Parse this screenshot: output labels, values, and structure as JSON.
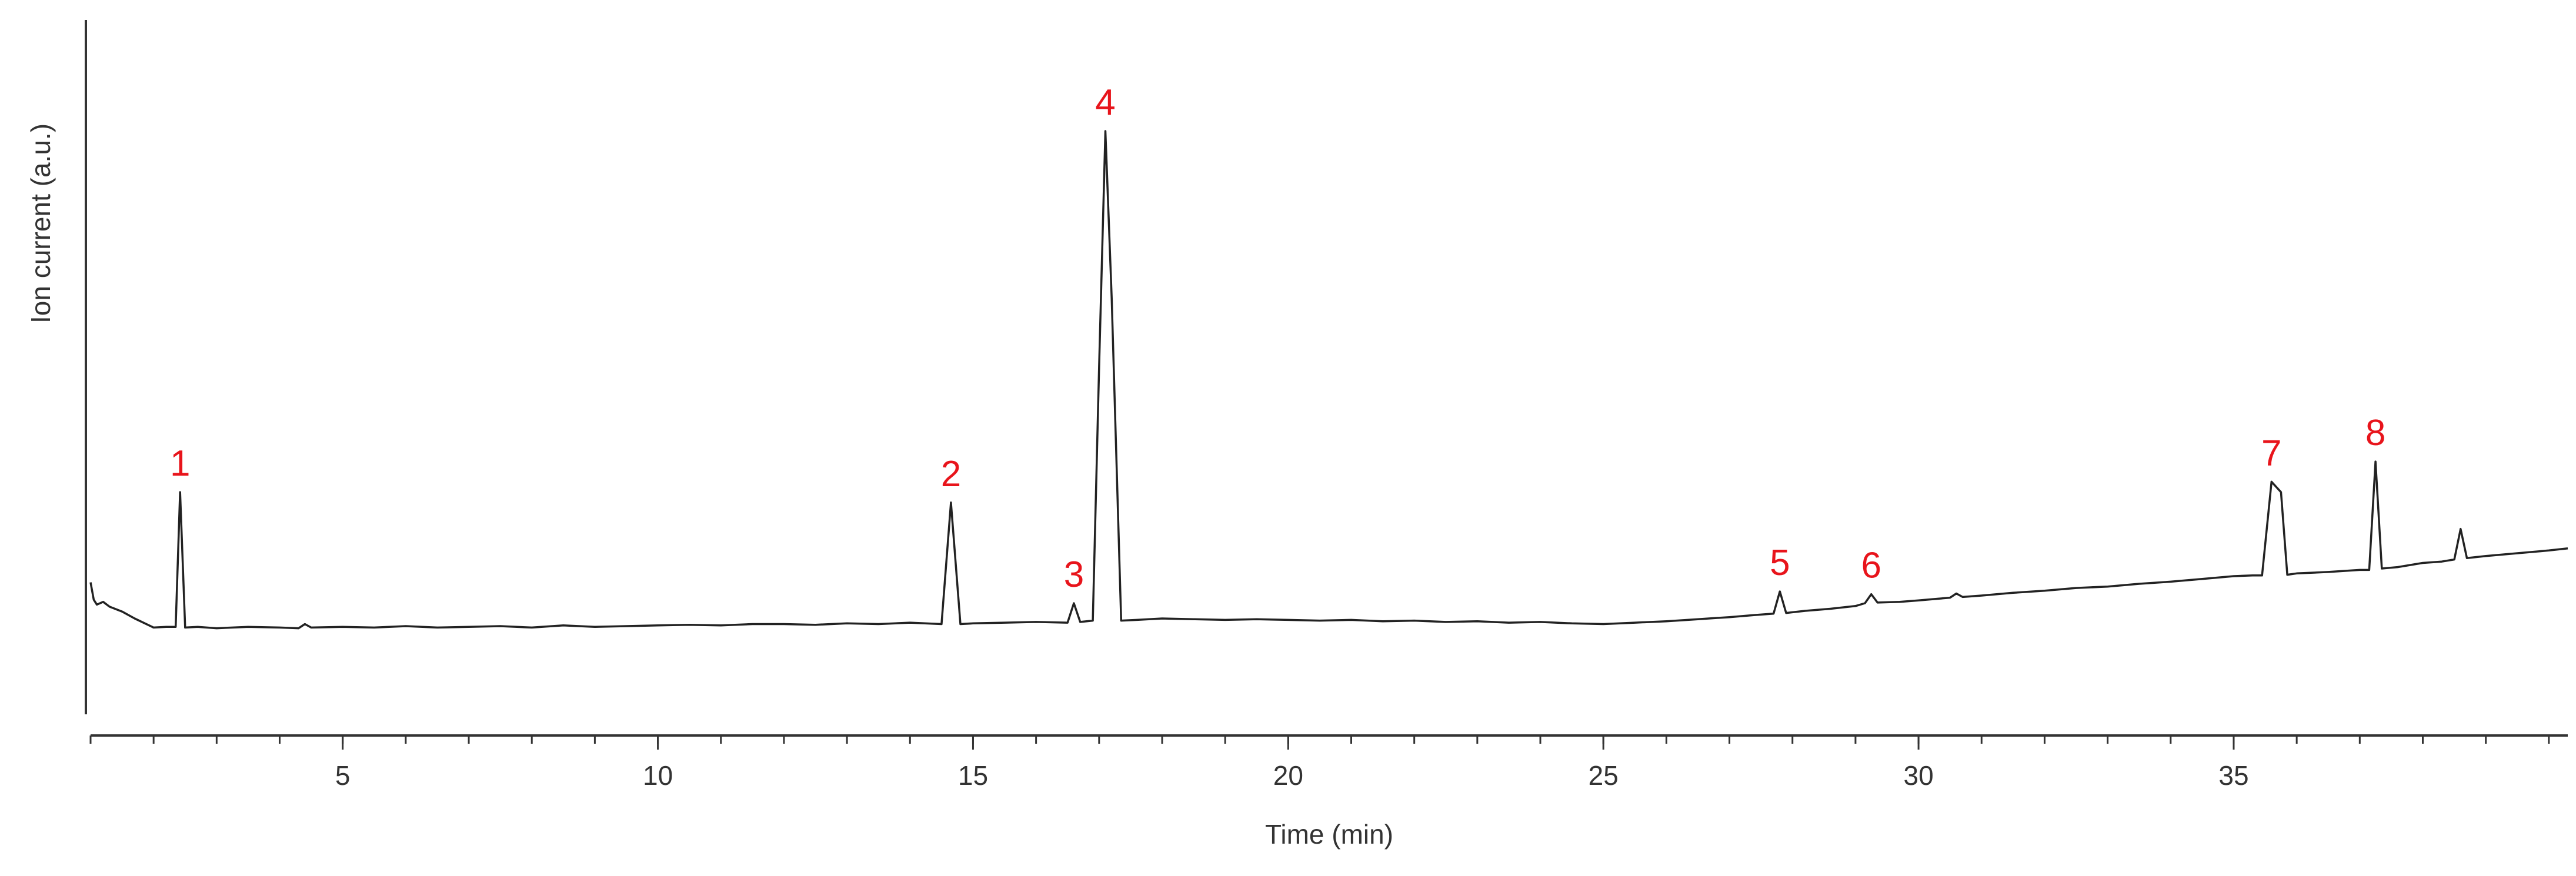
{
  "chart_data": {
    "type": "line",
    "xlabel": "Time (min)",
    "ylabel": "Ion current (a.u.)",
    "xlim": [
      1,
      40.3
    ],
    "ylim": [
      0,
      100
    ],
    "xticks": [
      5,
      10,
      15,
      20,
      25,
      30,
      35
    ],
    "xminorticks": [
      1,
      2,
      3,
      4,
      5,
      6,
      7,
      8,
      9,
      10,
      11,
      12,
      13,
      14,
      15,
      16,
      17,
      18,
      19,
      20,
      21,
      22,
      23,
      24,
      25,
      26,
      27,
      28,
      29,
      30,
      31,
      32,
      33,
      34,
      35,
      36,
      37,
      38,
      39,
      40
    ],
    "yticks": [],
    "color": "#222222",
    "annotation_color": "#e8141b",
    "x": [
      1.0,
      1.05,
      1.1,
      1.2,
      1.3,
      1.5,
      1.7,
      2.0,
      2.2,
      2.35,
      2.42,
      2.5,
      2.7,
      3.0,
      3.5,
      4.0,
      4.3,
      4.4,
      4.5,
      5.0,
      5.5,
      6.0,
      6.5,
      7.0,
      7.5,
      8.0,
      8.5,
      9.0,
      9.5,
      10.0,
      10.5,
      11.0,
      11.5,
      12.0,
      12.5,
      13.0,
      13.5,
      14.0,
      14.5,
      14.65,
      14.8,
      15.0,
      15.5,
      16.0,
      16.5,
      16.6,
      16.7,
      16.9,
      17.0,
      17.1,
      17.2,
      17.35,
      17.6,
      18.0,
      18.5,
      19.0,
      19.5,
      20.0,
      20.5,
      21.0,
      21.5,
      22.0,
      22.5,
      23.0,
      23.5,
      24.0,
      24.5,
      25.0,
      25.5,
      26.0,
      26.5,
      27.0,
      27.4,
      27.7,
      27.8,
      27.9,
      28.2,
      28.6,
      29.0,
      29.15,
      29.25,
      29.35,
      29.7,
      30.0,
      30.5,
      30.6,
      30.7,
      31.0,
      31.5,
      32.0,
      32.5,
      33.0,
      33.5,
      34.0,
      34.5,
      35.0,
      35.3,
      35.45,
      35.6,
      35.75,
      35.85,
      36.0,
      36.5,
      37.0,
      37.15,
      37.25,
      37.35,
      37.6,
      38.0,
      38.3,
      38.5,
      38.6,
      38.7,
      39.0,
      39.5,
      40.0,
      40.3
    ],
    "values": [
      19.0,
      16.5,
      15.8,
      16.2,
      15.5,
      14.8,
      13.8,
      12.5,
      12.6,
      12.6,
      32.0,
      12.5,
      12.6,
      12.4,
      12.6,
      12.5,
      12.4,
      13.0,
      12.5,
      12.6,
      12.5,
      12.7,
      12.5,
      12.6,
      12.7,
      12.5,
      12.8,
      12.6,
      12.7,
      12.8,
      12.9,
      12.8,
      13.0,
      13.0,
      12.9,
      13.1,
      13.0,
      13.2,
      13.0,
      30.5,
      13.0,
      13.1,
      13.2,
      13.3,
      13.2,
      16.0,
      13.3,
      13.5,
      50.0,
      84.0,
      60.0,
      13.5,
      13.6,
      13.8,
      13.7,
      13.6,
      13.7,
      13.6,
      13.5,
      13.6,
      13.4,
      13.5,
      13.3,
      13.4,
      13.2,
      13.3,
      13.1,
      13.0,
      13.2,
      13.4,
      13.7,
      14.0,
      14.3,
      14.5,
      17.7,
      14.6,
      14.9,
      15.2,
      15.6,
      16.0,
      17.3,
      16.1,
      16.2,
      16.4,
      16.8,
      17.4,
      16.9,
      17.1,
      17.5,
      17.8,
      18.2,
      18.4,
      18.8,
      19.1,
      19.5,
      19.9,
      20.0,
      20.0,
      33.5,
      32.0,
      20.1,
      20.3,
      20.5,
      20.8,
      20.8,
      36.4,
      21.0,
      21.2,
      21.8,
      22.0,
      22.3,
      26.7,
      22.5,
      22.8,
      23.2,
      23.6,
      23.9
    ],
    "annotations": [
      {
        "text": "1",
        "x": 2.42
      },
      {
        "text": "2",
        "x": 14.65
      },
      {
        "text": "3",
        "x": 16.6
      },
      {
        "text": "4",
        "x": 17.1
      },
      {
        "text": "5",
        "x": 27.8
      },
      {
        "text": "6",
        "x": 29.25
      },
      {
        "text": "7",
        "x": 35.6
      },
      {
        "text": "8",
        "x": 37.25
      }
    ]
  }
}
